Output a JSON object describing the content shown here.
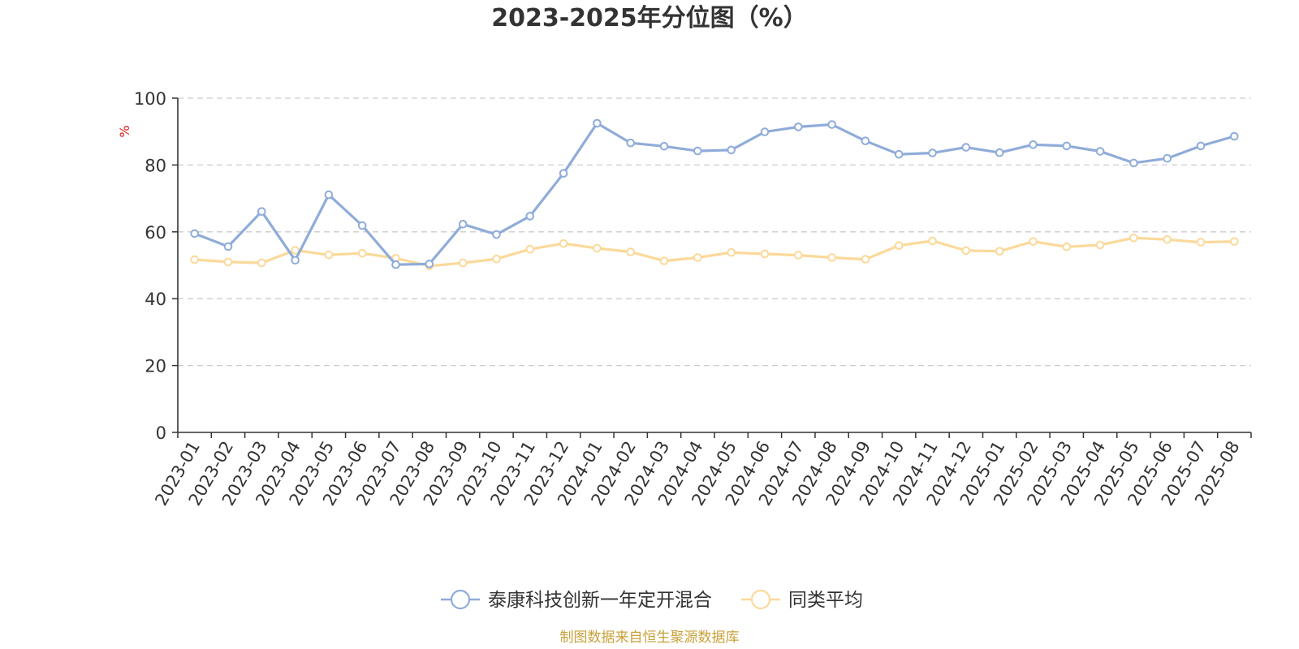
{
  "chart_data": {
    "type": "line",
    "title": "2023-2025年分位图（%）",
    "xlabel": "",
    "ylabel": "%",
    "ylim": [
      0,
      100
    ],
    "yticks": [
      0,
      20,
      40,
      60,
      80,
      100
    ],
    "grid": "horizontal dashed",
    "legend_position": "bottom",
    "categories": [
      "2023-01",
      "2023-02",
      "2023-03",
      "2023-04",
      "2023-05",
      "2023-06",
      "2023-07",
      "2023-08",
      "2023-09",
      "2023-10",
      "2023-11",
      "2023-12",
      "2024-01",
      "2024-02",
      "2024-03",
      "2024-04",
      "2024-05",
      "2024-06",
      "2024-07",
      "2024-08",
      "2024-09",
      "2024-10",
      "2024-11",
      "2024-12",
      "2025-01",
      "2025-02",
      "2025-03",
      "2025-04",
      "2025-05",
      "2025-06",
      "2025-07",
      "2025-08"
    ],
    "series": [
      {
        "name": "泰康科技创新一年定开混合",
        "color": "#8facd9",
        "values": [
          59.5,
          55.6,
          66.1,
          51.5,
          71.1,
          61.9,
          50.2,
          50.4,
          62.3,
          59.2,
          64.7,
          77.5,
          92.5,
          86.6,
          85.6,
          84.2,
          84.5,
          89.9,
          91.4,
          92.1,
          87.2,
          83.2,
          83.6,
          85.3,
          83.7,
          86.1,
          85.7,
          84.1,
          80.6,
          82.0,
          85.7,
          88.6
        ]
      },
      {
        "name": "同类平均",
        "color": "#fbd99a",
        "values": [
          51.7,
          51.0,
          50.7,
          54.5,
          53.1,
          53.6,
          52.1,
          49.8,
          50.7,
          51.9,
          54.8,
          56.5,
          55.1,
          54.0,
          51.3,
          52.3,
          53.8,
          53.4,
          53.0,
          52.3,
          51.8,
          55.9,
          57.3,
          54.4,
          54.2,
          57.1,
          55.5,
          56.1,
          58.2,
          57.7,
          56.9,
          57.1
        ]
      }
    ]
  },
  "footer": {
    "source": "制图数据来自恒生聚源数据库",
    "source_color": "#c9a13a"
  },
  "colors": {
    "axis": "#333333",
    "grid": "#cccccc",
    "ylabel": "#e0201a"
  }
}
